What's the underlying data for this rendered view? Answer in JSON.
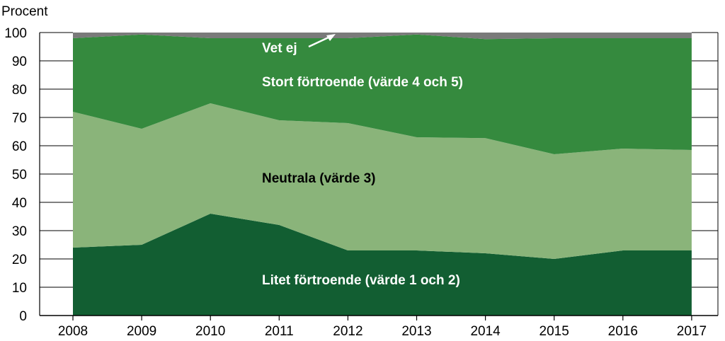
{
  "chart_data": {
    "type": "area",
    "stacked": true,
    "ylabel": "Procent",
    "ylim": [
      0,
      100
    ],
    "yticks": [
      0,
      10,
      20,
      30,
      40,
      50,
      60,
      70,
      80,
      90,
      100
    ],
    "x": [
      "2008",
      "2009",
      "2010",
      "2011",
      "2012",
      "2013",
      "2014",
      "2015",
      "2016",
      "2017"
    ],
    "series": [
      {
        "name": "Litet förtroende (värde 1 och 2)",
        "color": "#125e32",
        "label_color": "#ffffff",
        "values": [
          24,
          25,
          36,
          32,
          23,
          23,
          22,
          20,
          23,
          23
        ]
      },
      {
        "name": "Neutrala (värde 3)",
        "color": "#8ab47a",
        "label_color": "#000000",
        "values": [
          48,
          41,
          39,
          37,
          45,
          40,
          40.7,
          37,
          36,
          35.5
        ]
      },
      {
        "name": "Stort förtroende (värde 4 och 5)",
        "color": "#358a3e",
        "label_color": "#ffffff",
        "values": [
          26,
          33.3,
          23,
          29,
          30,
          36.3,
          35,
          41,
          39,
          39.5
        ]
      },
      {
        "name": "Vet ej",
        "color": "#7a7a7a",
        "label_color": "#ffffff",
        "values": [
          2,
          0.7,
          2,
          2,
          2,
          0.7,
          2.3,
          2,
          2,
          2
        ]
      }
    ],
    "annotations": [
      "Vet ej",
      "Stort förtroende (värde 4 och 5)",
      "Neutrala (värde 3)",
      "Litet förtroende (värde 1 och 2)"
    ]
  }
}
